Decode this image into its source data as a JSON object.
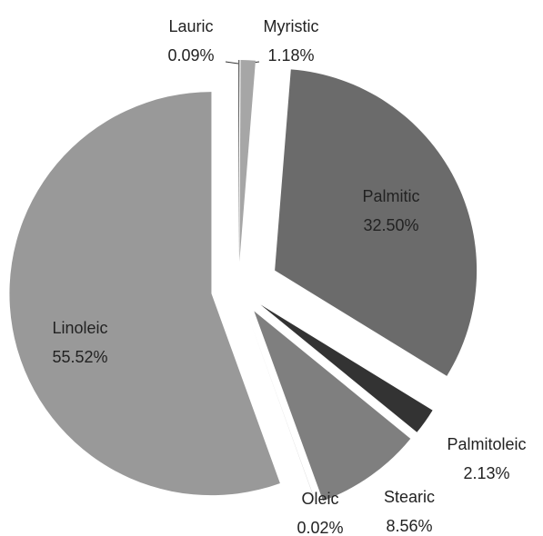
{
  "chart_data": {
    "type": "pie",
    "categories": [
      "Lauric",
      "Myristic",
      "Palmitic",
      "Palmitoleic",
      "Stearic",
      "Oleic",
      "Linoleic"
    ],
    "values": [
      0.09,
      1.18,
      32.5,
      2.13,
      8.56,
      0.02,
      55.52
    ],
    "value_labels": [
      "0.09%",
      "1.18%",
      "32.50%",
      "2.13%",
      "8.56%",
      "0.02%",
      "55.52%"
    ],
    "colors": [
      "#555555",
      "#a6a6a6",
      "#6b6b6b",
      "#333333",
      "#7f7f7f",
      "#bfbfbf",
      "#999999"
    ],
    "exploded": true
  }
}
